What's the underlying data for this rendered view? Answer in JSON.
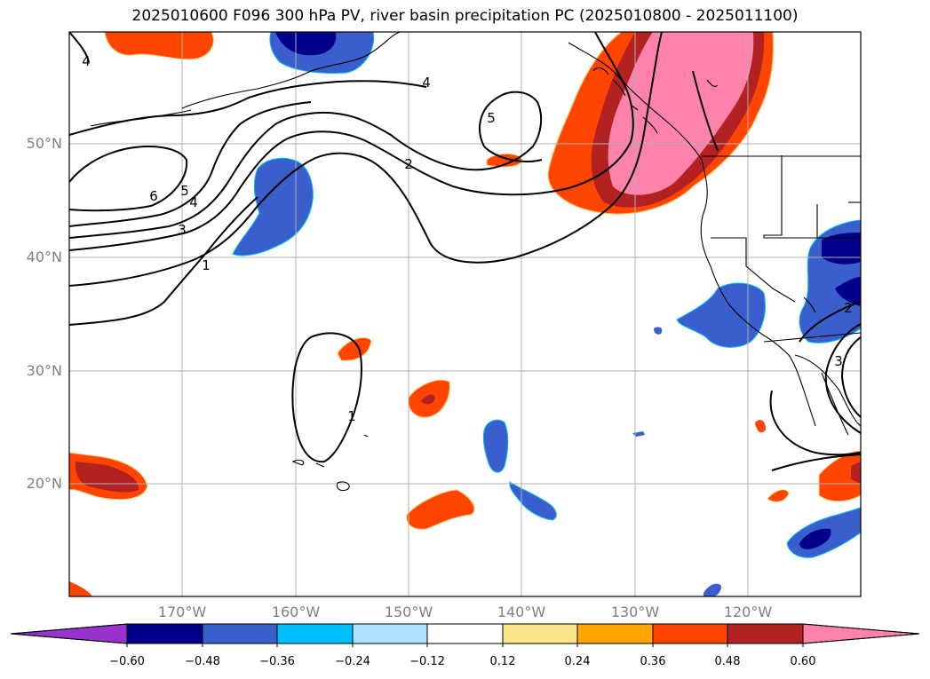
{
  "title": "2025010600 F096 300 hPa PV, river basin precipitation PC (2025010800 - 2025011100)",
  "lat_labels": [
    "50°N",
    "40°N",
    "30°N",
    "20°N"
  ],
  "lon_labels": [
    "170°W",
    "160°W",
    "150°W",
    "140°W",
    "130°W",
    "120°W"
  ],
  "contour_labels": [
    "4",
    "4",
    "5",
    "2",
    "6",
    "5",
    "4",
    "3",
    "1",
    "1",
    "2",
    "3"
  ],
  "colorbar": {
    "ticks": [
      "−0.60",
      "−0.48",
      "−0.36",
      "−0.24",
      "−0.12",
      "0.12",
      "0.24",
      "0.36",
      "0.48",
      "0.60"
    ],
    "colors": [
      "#9a32cd",
      "#00008b",
      "#3a5fcd",
      "#00bfff",
      "#b0e2ff",
      "#ffffff",
      "#fde68a",
      "#ffa500",
      "#ff4500",
      "#b22222",
      "#ff82ab"
    ]
  }
}
